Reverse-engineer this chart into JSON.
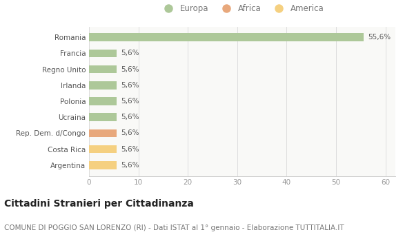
{
  "categories": [
    "Argentina",
    "Costa Rica",
    "Rep. Dem. d/Congo",
    "Ucraina",
    "Polonia",
    "Irlanda",
    "Regno Unito",
    "Francia",
    "Romania"
  ],
  "values": [
    5.6,
    5.6,
    5.6,
    5.6,
    5.6,
    5.6,
    5.6,
    5.6,
    55.6
  ],
  "colors": [
    "#f5d080",
    "#f5d080",
    "#e8a87c",
    "#adc899",
    "#adc899",
    "#adc899",
    "#adc899",
    "#adc899",
    "#adc899"
  ],
  "legend": [
    {
      "label": "Europa",
      "color": "#adc899"
    },
    {
      "label": "Africa",
      "color": "#e8a87c"
    },
    {
      "label": "America",
      "color": "#f5d080"
    }
  ],
  "xlim": [
    0,
    62
  ],
  "xticks": [
    0,
    10,
    20,
    30,
    40,
    50,
    60
  ],
  "title": "Cittadini Stranieri per Cittadinanza",
  "subtitle": "COMUNE DI POGGIO SAN LORENZO (RI) - Dati ISTAT al 1° gennaio - Elaborazione TUTTITALIA.IT",
  "background_color": "#ffffff",
  "plot_bg_color": "#f9f9f7",
  "bar_label_fontsize": 7.5,
  "tick_fontsize": 7.5,
  "legend_fontsize": 8.5,
  "title_fontsize": 10,
  "subtitle_fontsize": 7.5,
  "bar_height": 0.5
}
